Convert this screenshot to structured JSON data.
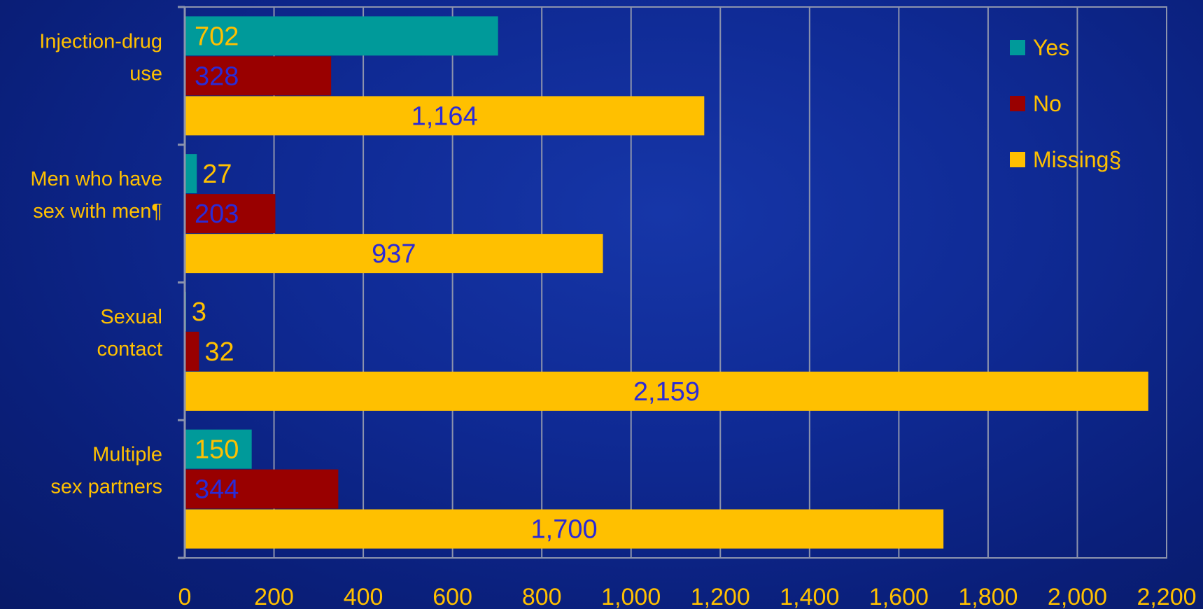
{
  "chart_data": {
    "type": "bar",
    "orientation": "horizontal",
    "categories": [
      "Injection-drug use",
      "Men who have sex with men¶",
      "Sexual contact",
      "Multiple sex partners"
    ],
    "category_lines": [
      [
        "Injection-drug",
        "use"
      ],
      [
        "Men who have",
        "sex with men¶"
      ],
      [
        "Sexual",
        "contact"
      ],
      [
        "Multiple",
        "sex partners"
      ]
    ],
    "series": [
      {
        "name": "Yes",
        "color": "#009a9a",
        "values": [
          702,
          27,
          3,
          150
        ],
        "labels": [
          "702",
          "27",
          "3",
          "150"
        ],
        "label_color": "#ffc000"
      },
      {
        "name": "No",
        "color": "#990000",
        "values": [
          328,
          203,
          32,
          344
        ],
        "labels": [
          "328",
          "203",
          "32",
          "344"
        ],
        "label_color": "#2b2bd6"
      },
      {
        "name": "Missing§",
        "color": "#ffc000",
        "values": [
          1164,
          937,
          2159,
          1700
        ],
        "labels": [
          "1,164",
          "937",
          "2,159",
          "1,700"
        ],
        "label_color": "#2b2bd6"
      }
    ],
    "xlim": [
      0,
      2200
    ],
    "x_ticks": [
      0,
      200,
      400,
      600,
      800,
      1000,
      1200,
      1400,
      1600,
      1800,
      2000,
      2200
    ],
    "x_tick_labels": [
      "0",
      "200",
      "400",
      "600",
      "800",
      "1,000",
      "1,200",
      "1,400",
      "1,600",
      "1,800",
      "2,000",
      "2,200"
    ],
    "title": "",
    "xlabel": "",
    "ylabel": "",
    "grid": true,
    "legend_position": "top-right"
  }
}
